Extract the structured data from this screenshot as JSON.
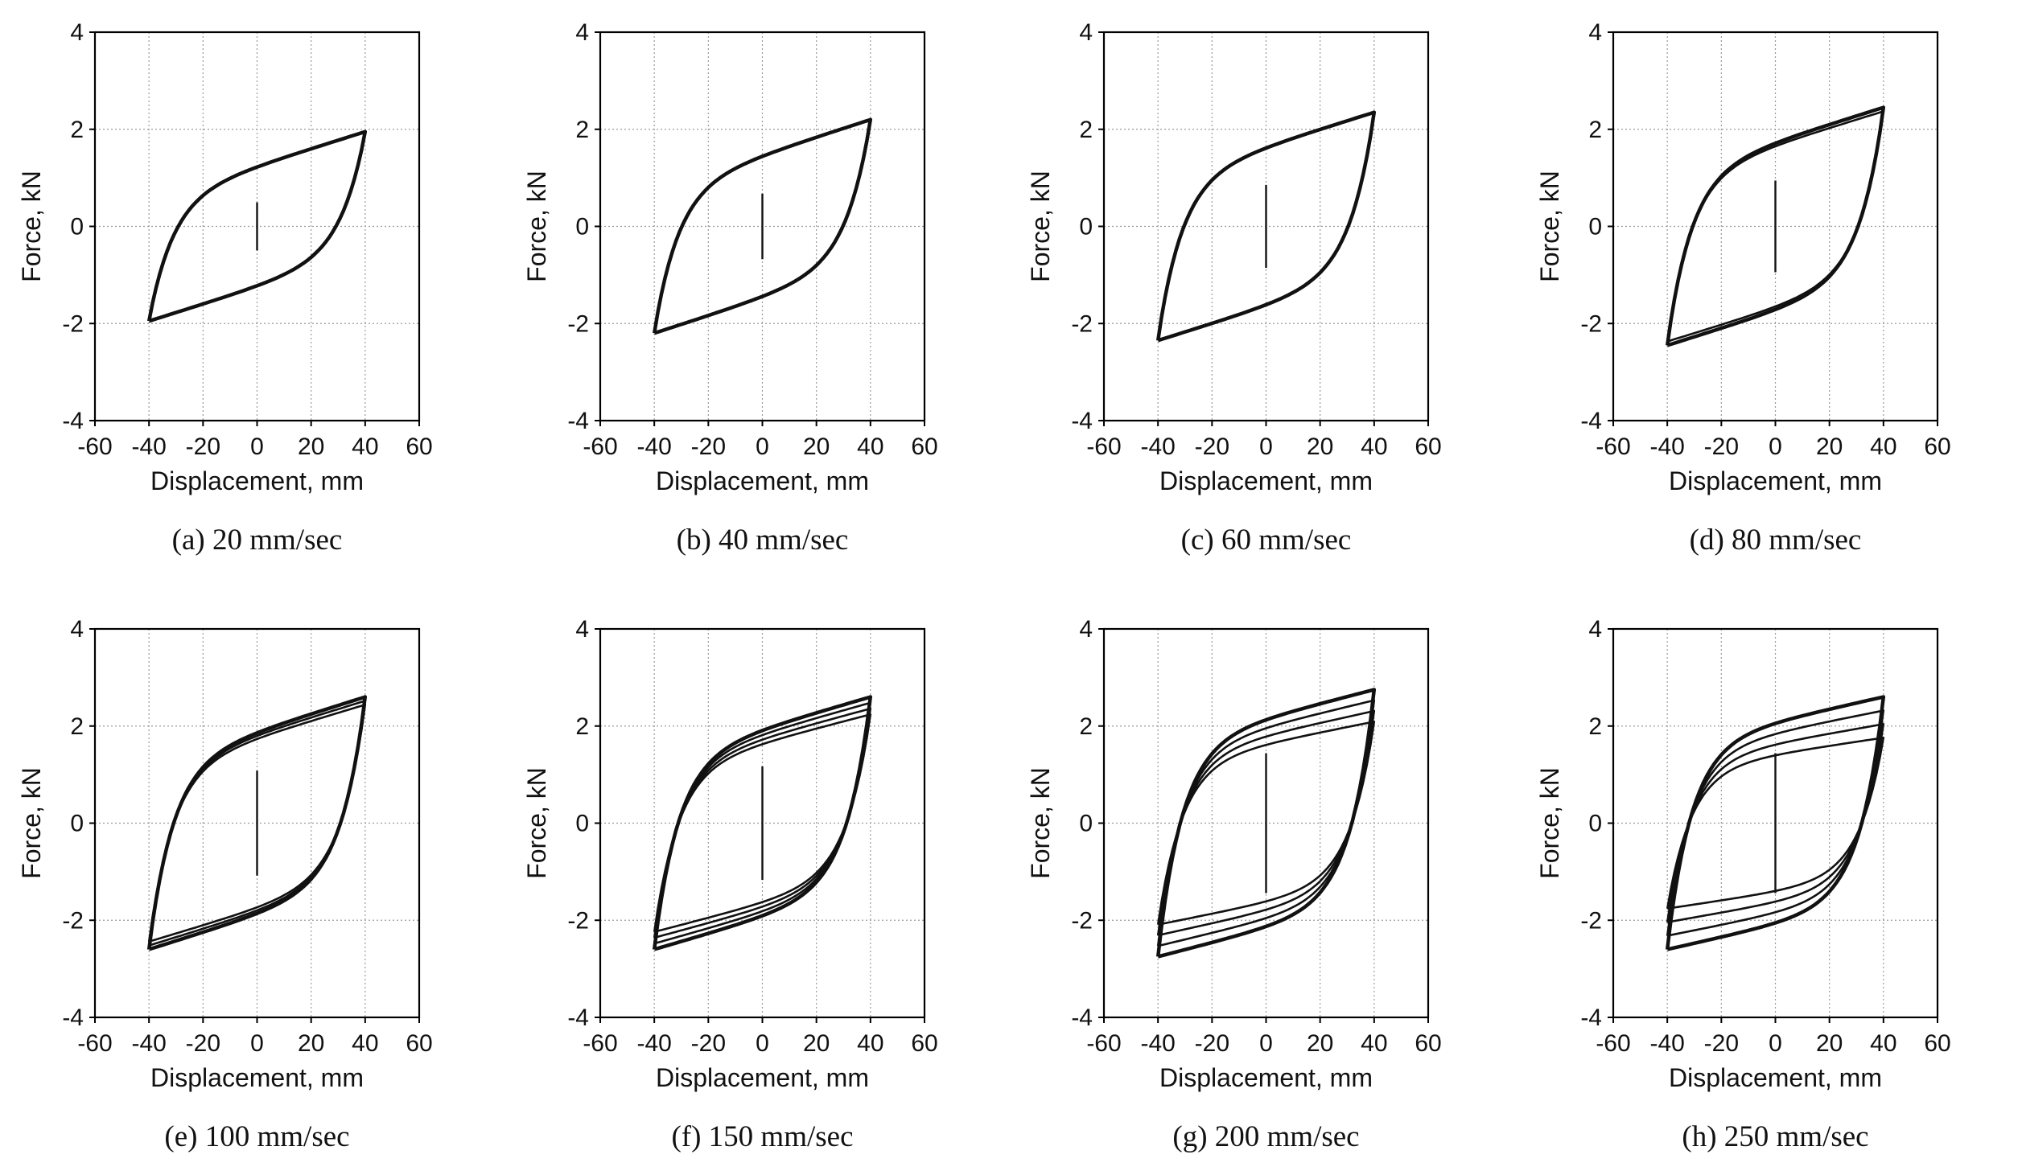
{
  "chart_data": [
    {
      "id": "a",
      "type": "line",
      "caption": "(a) 20 mm/sec",
      "xlabel": "Displacement, mm",
      "ylabel": "Force, kN",
      "xlim": [
        -60,
        60
      ],
      "ylim": [
        -4,
        4
      ],
      "xticks": [
        "-60",
        "-40",
        "-20",
        "0",
        "20",
        "40",
        "60"
      ],
      "yticks": [
        "-4",
        "-2",
        "0",
        "2",
        "4"
      ],
      "grid": true,
      "amplitude_mm": 40,
      "peak_kN": 1.95,
      "residual_kN": 0.55,
      "loops": 1,
      "loop_step_kN": 0
    },
    {
      "id": "b",
      "type": "line",
      "caption": "(b) 40 mm/sec",
      "xlabel": "Displacement, mm",
      "ylabel": "Force, kN",
      "xlim": [
        -60,
        60
      ],
      "ylim": [
        -4,
        4
      ],
      "xticks": [
        "-60",
        "-40",
        "-20",
        "0",
        "20",
        "40",
        "60"
      ],
      "yticks": [
        "-4",
        "-2",
        "0",
        "2",
        "4"
      ],
      "grid": true,
      "amplitude_mm": 40,
      "peak_kN": 2.2,
      "residual_kN": 0.75,
      "loops": 1,
      "loop_step_kN": 0
    },
    {
      "id": "c",
      "type": "line",
      "caption": "(c) 60 mm/sec",
      "xlabel": "Displacement, mm",
      "ylabel": "Force, kN",
      "xlim": [
        -60,
        60
      ],
      "ylim": [
        -4,
        4
      ],
      "xticks": [
        "-60",
        "-40",
        "-20",
        "0",
        "20",
        "40",
        "60"
      ],
      "yticks": [
        "-4",
        "-2",
        "0",
        "2",
        "4"
      ],
      "grid": true,
      "amplitude_mm": 40,
      "peak_kN": 2.35,
      "residual_kN": 0.95,
      "loops": 1,
      "loop_step_kN": 0
    },
    {
      "id": "d",
      "type": "line",
      "caption": "(d) 80 mm/sec",
      "xlabel": "Displacement, mm",
      "ylabel": "Force, kN",
      "xlim": [
        -60,
        60
      ],
      "ylim": [
        -4,
        4
      ],
      "xticks": [
        "-60",
        "-40",
        "-20",
        "0",
        "20",
        "40",
        "60"
      ],
      "yticks": [
        "-4",
        "-2",
        "0",
        "2",
        "4"
      ],
      "grid": true,
      "amplitude_mm": 40,
      "peak_kN": 2.45,
      "residual_kN": 1.05,
      "loops": 2,
      "loop_step_kN": 0.08
    },
    {
      "id": "e",
      "type": "line",
      "caption": "(e) 100 mm/sec",
      "xlabel": "Displacement, mm",
      "ylabel": "Force, kN",
      "xlim": [
        -60,
        60
      ],
      "ylim": [
        -4,
        4
      ],
      "xticks": [
        "-60",
        "-40",
        "-20",
        "0",
        "20",
        "40",
        "60"
      ],
      "yticks": [
        "-4",
        "-2",
        "0",
        "2",
        "4"
      ],
      "grid": true,
      "amplitude_mm": 40,
      "peak_kN": 2.6,
      "residual_kN": 1.2,
      "loops": 3,
      "loop_step_kN": 0.08
    },
    {
      "id": "f",
      "type": "line",
      "caption": "(f) 150 mm/sec",
      "xlabel": "Displacement, mm",
      "ylabel": "Force, kN",
      "xlim": [
        -60,
        60
      ],
      "ylim": [
        -4,
        4
      ],
      "xticks": [
        "-60",
        "-40",
        "-20",
        "0",
        "20",
        "40",
        "60"
      ],
      "yticks": [
        "-4",
        "-2",
        "0",
        "2",
        "4"
      ],
      "grid": true,
      "amplitude_mm": 40,
      "peak_kN": 2.6,
      "residual_kN": 1.3,
      "loops": 4,
      "loop_step_kN": 0.12
    },
    {
      "id": "g",
      "type": "line",
      "caption": "(g) 200 mm/sec",
      "xlabel": "Displacement, mm",
      "ylabel": "Force, kN",
      "xlim": [
        -60,
        60
      ],
      "ylim": [
        -4,
        4
      ],
      "xticks": [
        "-60",
        "-40",
        "-20",
        "0",
        "20",
        "40",
        "60"
      ],
      "yticks": [
        "-4",
        "-2",
        "0",
        "2",
        "4"
      ],
      "grid": true,
      "amplitude_mm": 40,
      "peak_kN": 2.75,
      "residual_kN": 1.6,
      "loops": 4,
      "loop_step_kN": 0.22
    },
    {
      "id": "h",
      "type": "line",
      "caption": "(h) 250 mm/sec",
      "xlabel": "Displacement, mm",
      "ylabel": "Force, kN",
      "xlim": [
        -60,
        60
      ],
      "ylim": [
        -4,
        4
      ],
      "xticks": [
        "-60",
        "-40",
        "-20",
        "0",
        "20",
        "40",
        "60"
      ],
      "yticks": [
        "-4",
        "-2",
        "0",
        "2",
        "4"
      ],
      "grid": true,
      "amplitude_mm": 40,
      "peak_kN": 2.6,
      "residual_kN": 1.6,
      "loops": 4,
      "loop_step_kN": 0.28
    }
  ],
  "colors": {
    "curve": "#111111",
    "grid": "#9a9a9a",
    "frame": "#000000"
  }
}
